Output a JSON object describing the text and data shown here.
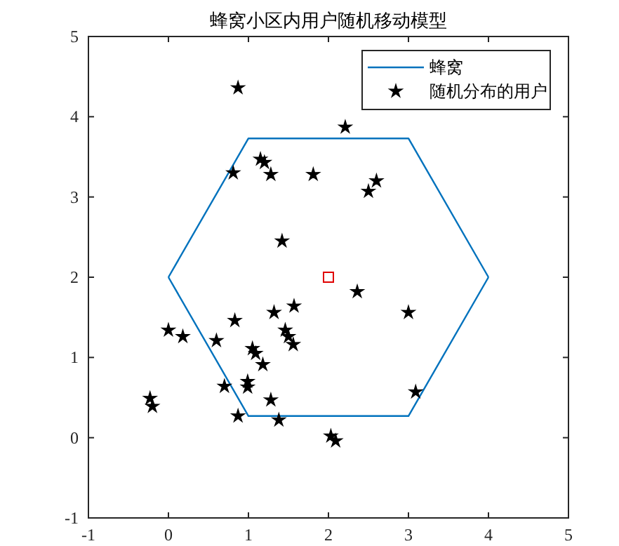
{
  "chart_data": {
    "type": "scatter",
    "title": "蜂窝小区内用户随机移动模型",
    "xlim": [
      -1,
      5
    ],
    "ylim": [
      -1,
      5
    ],
    "xticks": [
      -1,
      0,
      1,
      2,
      3,
      4,
      5
    ],
    "yticks": [
      -1,
      0,
      1,
      2,
      3,
      4,
      5
    ],
    "grid": false,
    "legend": "top right",
    "series": [
      {
        "name": "蜂窝",
        "type": "line",
        "color": "#0072bd",
        "marker": "none",
        "x": [
          0,
          1,
          3,
          4
        ],
        "values": [
          2,
          3.73,
          3.73,
          2
        ]
      },
      {
        "type": "line",
        "color": "#0072bd",
        "marker": "none",
        "x": [
          0,
          1,
          3,
          4
        ],
        "values": [
          2,
          0.27,
          0.27,
          2
        ]
      },
      {
        "name": "随机分布的用户",
        "type": "scatter",
        "color": "#000000",
        "marker": "star",
        "x": [
          0.87,
          2.21,
          0.81,
          1.15,
          1.2,
          1.28,
          1.81,
          2.5,
          2.6,
          1.42,
          2.36,
          3.0,
          1.32,
          1.57,
          0.83,
          0.0,
          0.18,
          0.6,
          1.46,
          1.5,
          1.56,
          1.05,
          1.09,
          1.18,
          0.7,
          0.99,
          0.99,
          1.28,
          -0.23,
          -0.2,
          3.09,
          0.87,
          1.38,
          2.03,
          2.09
        ],
        "values": [
          4.36,
          3.87,
          3.3,
          3.47,
          3.43,
          3.28,
          3.28,
          3.07,
          3.2,
          2.45,
          1.82,
          1.56,
          1.56,
          1.64,
          1.46,
          1.34,
          1.26,
          1.21,
          1.34,
          1.26,
          1.16,
          1.11,
          1.05,
          0.91,
          0.64,
          0.7,
          0.63,
          0.47,
          0.49,
          0.39,
          0.57,
          0.27,
          0.22,
          0.02,
          -0.04
        ]
      },
      {
        "type": "scatter",
        "color": "#e00000",
        "marker": "square",
        "x": [
          2
        ],
        "values": [
          2
        ]
      }
    ]
  }
}
